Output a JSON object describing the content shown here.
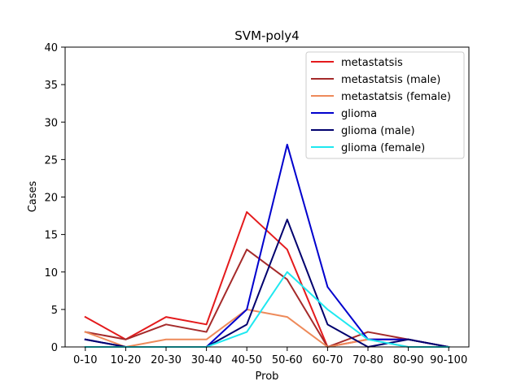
{
  "chart_data": {
    "type": "line",
    "title": "SVM-poly4",
    "xlabel": "Prob",
    "ylabel": "Cases",
    "categories": [
      "0-10",
      "10-20",
      "20-30",
      "30-40",
      "40-50",
      "50-60",
      "60-70",
      "70-80",
      "80-90",
      "90-100"
    ],
    "ylim": [
      0,
      40
    ],
    "yticks": [
      0,
      5,
      10,
      15,
      20,
      25,
      30,
      35,
      40
    ],
    "grid": false,
    "legend_position": "top-right",
    "series": [
      {
        "name": "metastatsis",
        "color": "#e41a1c",
        "values": [
          4,
          1,
          4,
          3,
          18,
          13,
          0,
          1,
          1,
          0
        ]
      },
      {
        "name": "metastatsis (male)",
        "color": "#a52a2a",
        "values": [
          2,
          1,
          3,
          2,
          13,
          9,
          0,
          2,
          1,
          0
        ]
      },
      {
        "name": "metastatsis (female)",
        "color": "#ee8a5a",
        "values": [
          2,
          0,
          1,
          1,
          5,
          4,
          0,
          1,
          0,
          0
        ]
      },
      {
        "name": "glioma",
        "color": "#0000cd",
        "values": [
          1,
          0,
          0,
          0,
          5,
          27,
          8,
          1,
          1,
          0
        ]
      },
      {
        "name": "glioma (male)",
        "color": "#00006e",
        "values": [
          1,
          0,
          0,
          0,
          3,
          17,
          3,
          0,
          1,
          0
        ]
      },
      {
        "name": "glioma (female)",
        "color": "#1ee8f0",
        "values": [
          0,
          0,
          0,
          0,
          2,
          10,
          5,
          1,
          0,
          0
        ]
      }
    ]
  }
}
